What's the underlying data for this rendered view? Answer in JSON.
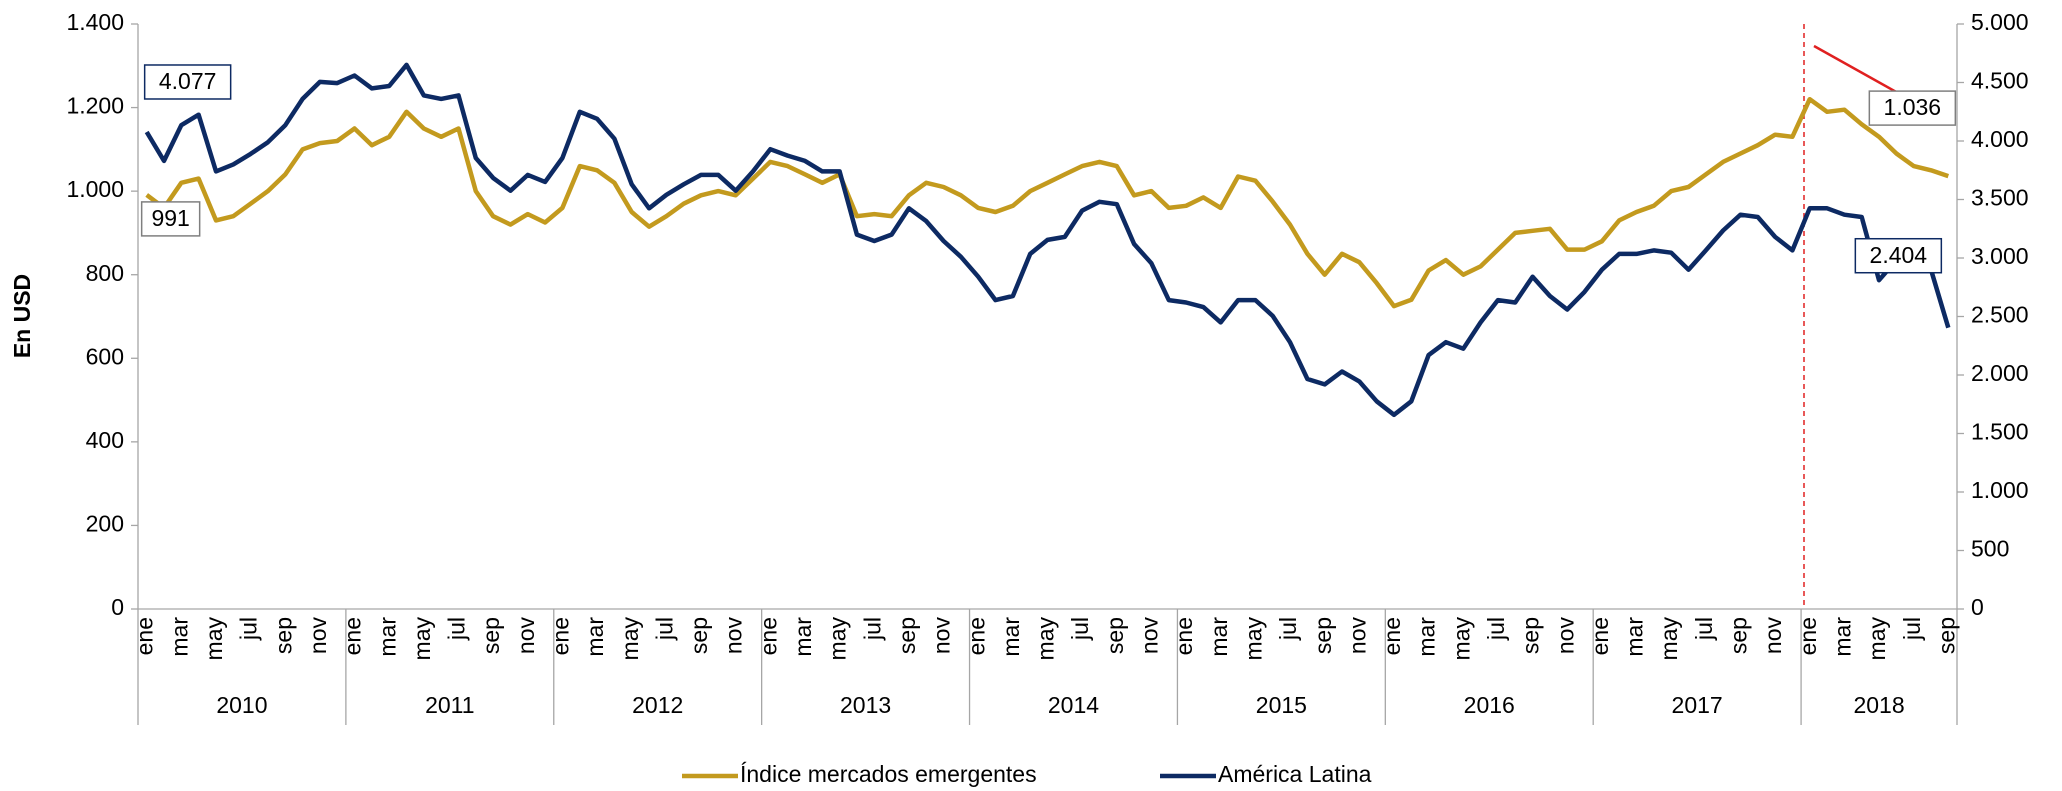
{
  "chart_data": {
    "type": "line",
    "y_label": "En USD",
    "categories": [
      "ene",
      null,
      "mar",
      null,
      "may",
      null,
      "jul",
      null,
      "sep",
      null,
      "nov",
      null,
      "ene",
      null,
      "mar",
      null,
      "may",
      null,
      "jul",
      null,
      "sep",
      null,
      "nov",
      null,
      "ene",
      null,
      "mar",
      null,
      "may",
      null,
      "jul",
      null,
      "sep",
      null,
      "nov",
      null,
      "ene",
      null,
      "mar",
      null,
      "may",
      null,
      "jul",
      null,
      "sep",
      null,
      "nov",
      null,
      "ene",
      null,
      "mar",
      null,
      "may",
      null,
      "jul",
      null,
      "sep",
      null,
      "nov",
      null,
      "ene",
      null,
      "mar",
      null,
      "may",
      null,
      "jul",
      null,
      "sep",
      null,
      "nov",
      null,
      "ene",
      null,
      "mar",
      null,
      "may",
      null,
      "jul",
      null,
      "sep",
      null,
      "nov",
      null,
      "ene",
      null,
      "mar",
      null,
      "may",
      null,
      "jul",
      null,
      "sep",
      null,
      "nov",
      null,
      "ene",
      null,
      "mar",
      null,
      "may",
      null,
      "jul",
      null,
      "sep"
    ],
    "years": [
      "2010",
      "2011",
      "2012",
      "2013",
      "2014",
      "2015",
      "2016",
      "2017",
      "2018"
    ],
    "series": [
      {
        "name": "Índice mercados emergentes",
        "color": "#c39a1e",
        "axis": "y",
        "values": [
          991,
          960,
          1020,
          1030,
          930,
          940,
          970,
          1000,
          1040,
          1100,
          1115,
          1120,
          1150,
          1110,
          1130,
          1190,
          1150,
          1130,
          1150,
          1000,
          940,
          920,
          945,
          925,
          960,
          1060,
          1050,
          1020,
          950,
          915,
          940,
          970,
          990,
          1000,
          990,
          1030,
          1070,
          1060,
          1040,
          1020,
          1040,
          940,
          945,
          940,
          990,
          1020,
          1010,
          990,
          960,
          950,
          965,
          1000,
          1020,
          1040,
          1060,
          1070,
          1060,
          990,
          1000,
          960,
          965,
          985,
          960,
          1035,
          1025,
          975,
          920,
          850,
          800,
          850,
          830,
          780,
          725,
          740,
          810,
          835,
          800,
          820,
          860,
          900,
          905,
          910,
          860,
          860,
          880,
          930,
          950,
          965,
          1000,
          1010,
          1040,
          1070,
          1090,
          1110,
          1135,
          1130,
          1220,
          1190,
          1195,
          1160,
          1130,
          1090,
          1060,
          1050,
          1036
        ],
        "value_labels": [
          "991",
          null,
          null,
          null,
          null,
          null,
          null,
          null,
          null,
          null,
          null,
          null,
          null,
          null,
          null,
          null,
          null,
          null,
          null,
          null,
          null,
          null,
          null,
          null,
          null,
          null,
          null,
          null,
          null,
          null,
          null,
          null,
          null,
          null,
          null,
          null,
          null,
          null,
          null,
          null,
          null,
          null,
          null,
          null,
          null,
          null,
          null,
          null,
          null,
          null,
          null,
          null,
          null,
          null,
          null,
          null,
          null,
          null,
          null,
          null,
          null,
          null,
          null,
          null,
          null,
          null,
          null,
          null,
          null,
          null,
          null,
          null,
          null,
          null,
          null,
          null,
          null,
          null,
          null,
          null,
          null,
          null,
          null,
          null,
          null,
          null,
          null,
          null,
          null,
          null,
          null,
          null,
          null,
          null,
          null,
          null,
          null,
          null,
          null,
          null,
          null,
          null,
          null,
          null,
          "1.036"
        ]
      },
      {
        "name": "América Latina",
        "color": "#0d2a63",
        "axis": "y2",
        "values": [
          4077,
          3830,
          4135,
          4225,
          3740,
          3800,
          3890,
          3990,
          4135,
          4360,
          4505,
          4495,
          4560,
          4450,
          4470,
          4650,
          4390,
          4360,
          4390,
          3855,
          3685,
          3575,
          3710,
          3650,
          3855,
          4250,
          4190,
          4020,
          3630,
          3425,
          3540,
          3630,
          3710,
          3710,
          3575,
          3740,
          3930,
          3875,
          3830,
          3740,
          3740,
          3200,
          3145,
          3200,
          3425,
          3315,
          3145,
          3010,
          2840,
          2640,
          2675,
          3035,
          3155,
          3180,
          3405,
          3480,
          3460,
          3120,
          2955,
          2640,
          2620,
          2580,
          2450,
          2640,
          2640,
          2505,
          2280,
          1966,
          1920,
          2030,
          1945,
          1775,
          1660,
          1775,
          2170,
          2280,
          2225,
          2450,
          2640,
          2620,
          2840,
          2675,
          2560,
          2710,
          2900,
          3035,
          3035,
          3065,
          3045,
          2900,
          3065,
          3235,
          3370,
          3350,
          3180,
          3065,
          3425,
          3425,
          3370,
          3350,
          2810,
          2980,
          2900,
          2900,
          2404
        ],
        "value_labels": [
          "4.077",
          null,
          null,
          null,
          null,
          null,
          null,
          null,
          null,
          null,
          null,
          null,
          null,
          null,
          null,
          null,
          null,
          null,
          null,
          null,
          null,
          null,
          null,
          null,
          null,
          null,
          null,
          null,
          null,
          null,
          null,
          null,
          null,
          null,
          null,
          null,
          null,
          null,
          null,
          null,
          null,
          null,
          null,
          null,
          null,
          null,
          null,
          null,
          null,
          null,
          null,
          null,
          null,
          null,
          null,
          null,
          null,
          null,
          null,
          null,
          null,
          null,
          null,
          null,
          null,
          null,
          null,
          null,
          null,
          null,
          null,
          null,
          null,
          null,
          null,
          null,
          null,
          null,
          null,
          null,
          null,
          null,
          null,
          null,
          null,
          null,
          null,
          null,
          null,
          null,
          null,
          null,
          null,
          null,
          null,
          null,
          null,
          null,
          null,
          null,
          null,
          null,
          null,
          null,
          "2.404"
        ]
      }
    ],
    "ylim": [
      0,
      1400
    ],
    "yticks": [
      0,
      200,
      400,
      600,
      800,
      {
        "value": 1000,
        "label": "1.000"
      },
      {
        "value": 1200,
        "label": "1.200"
      },
      {
        "value": 1400,
        "label": "1.400"
      }
    ],
    "y2lim": [
      0,
      5000
    ],
    "y2ticks": [
      0,
      500,
      {
        "value": 1000,
        "label": "1.000"
      },
      {
        "value": 1500,
        "label": "1.500"
      },
      {
        "value": 2000,
        "label": "2.000"
      },
      {
        "value": 2500,
        "label": "2.500"
      },
      {
        "value": 3000,
        "label": "3.000"
      },
      {
        "value": 3500,
        "label": "3.500"
      },
      {
        "value": 4000,
        "label": "4.000"
      },
      {
        "value": 4500,
        "label": "4.500"
      },
      {
        "value": 5000,
        "label": "5.000"
      }
    ],
    "legend": "bottom"
  }
}
